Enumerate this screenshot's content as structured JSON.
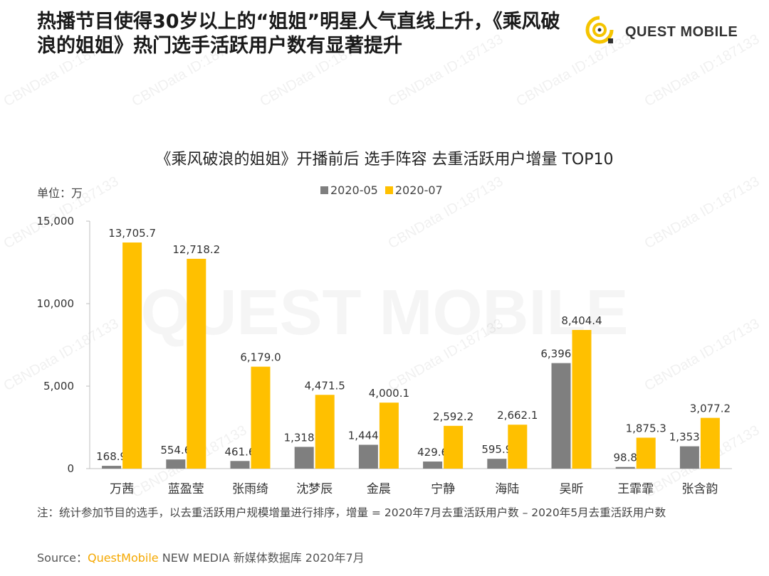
{
  "headline": "热播节目使得30岁以上的“姐姐”明星人气直线上升，《乘风破浪的姐姐》热门选手活跃用户数有显著提升",
  "logo": {
    "text": "QUEST MOBILE"
  },
  "watermark": {
    "text": "CBNData ID:187133",
    "big_text": "QUEST MOBILE"
  },
  "chart_data": {
    "type": "bar",
    "title": "《乘风破浪的姐姐》开播前后  选手阵容 去重活跃用户增量 TOP10",
    "unit": "单位：万",
    "categories": [
      "万茜",
      "蓝盈莹",
      "张雨绮",
      "沈梦辰",
      "金晨",
      "宁静",
      "海陆",
      "吴昕",
      "王霏霏",
      "张含韵"
    ],
    "series": [
      {
        "name": "2020-05",
        "color": "#7f7f7f",
        "values": [
          168.9,
          554.6,
          461.6,
          1318.0,
          1444.6,
          429.6,
          595.9,
          6396.4,
          98.8,
          1353.2
        ],
        "labels": [
          "168.9",
          "554.6",
          "461.6",
          "1,318.0",
          "1,444.6",
          "429.6",
          "595.9",
          "6,396.4",
          "98.8",
          "1,353.2"
        ]
      },
      {
        "name": "2020-07",
        "color": "#ffc000",
        "values": [
          13705.7,
          12718.2,
          6179.0,
          4471.5,
          4000.1,
          2592.2,
          2662.1,
          8404.4,
          1875.3,
          3077.2
        ],
        "labels": [
          "13,705.7",
          "12,718.2",
          "6,179.0",
          "4,471.5",
          "4,000.1",
          "2,592.2",
          "2,662.1",
          "8,404.4",
          "1,875.3",
          "3,077.2"
        ]
      }
    ],
    "ylim": [
      0,
      15000
    ],
    "yticks": [
      0,
      5000,
      10000,
      15000
    ],
    "ytick_labels": [
      "0",
      "5,000",
      "10,000",
      "15,000"
    ],
    "grid": false,
    "legend": "top-center"
  },
  "note": "注：统计参加节目的选手，以去重活跃用户规模增量进行排序，增量 = 2020年7月去重活跃用户数 – 2020年5月去重活跃用户数",
  "source": {
    "prefix": "Source：",
    "brand": "QuestMobile",
    "rest": " NEW MEDIA 新媒体数据库 2020年7月"
  }
}
